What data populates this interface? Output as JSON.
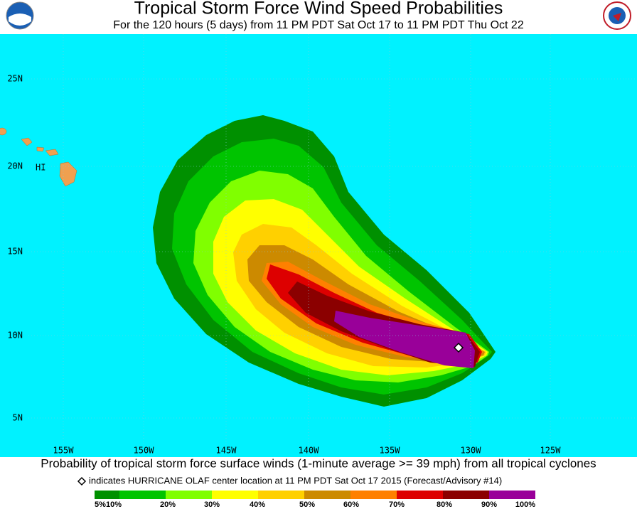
{
  "header": {
    "title": "Tropical Storm Force Wind Speed Probabilities",
    "subtitle": "For the 120 hours (5 days) from 11 PM PDT Sat Oct 17 to 11 PM PDT Thu Oct 22"
  },
  "map": {
    "latitude_labels": [
      "25N",
      "20N",
      "15N",
      "10N",
      "5N"
    ],
    "longitude_labels": [
      "155W",
      "150W",
      "145W",
      "140W",
      "135W",
      "130W",
      "125W"
    ],
    "place_label": "HI"
  },
  "footer": {
    "caption": "Probability of tropical storm force surface winds (1-minute average >= 39 mph) from all tropical cyclones",
    "marker_note": "indicates HURRICANE OLAF center location at 11 PM PDT Sat Oct 17 2015 (Forecast/Advisory #14)",
    "scale_labels": [
      "5%",
      "10%",
      "20%",
      "30%",
      "40%",
      "50%",
      "60%",
      "70%",
      "80%",
      "90%",
      "100%"
    ]
  }
}
